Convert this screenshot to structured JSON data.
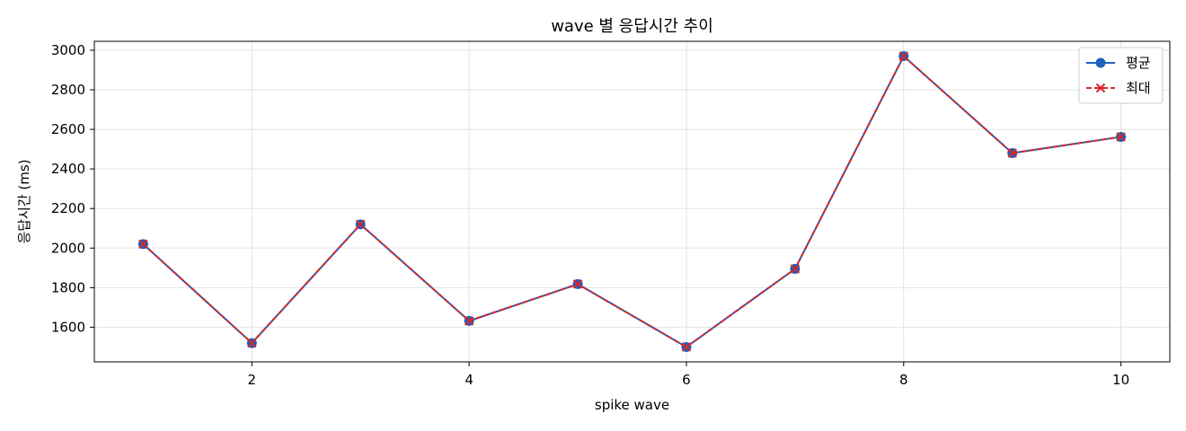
{
  "chart_data": {
    "type": "line",
    "title": "wave 별 응답시간 추이",
    "xlabel": "spike wave",
    "ylabel": "응답시간 (ms)",
    "x": [
      1,
      2,
      3,
      4,
      5,
      6,
      7,
      8,
      9,
      10
    ],
    "xlim": [
      0.55,
      10.45
    ],
    "ylim": [
      1425,
      3045
    ],
    "xticks": [
      2,
      4,
      6,
      8,
      10
    ],
    "yticks": [
      1600,
      1800,
      2000,
      2200,
      2400,
      2600,
      2800,
      3000
    ],
    "grid": true,
    "legend_position": "top-right",
    "series": [
      {
        "name": "평균",
        "values": [
          2020,
          1520,
          2120,
          1632,
          1818,
          1500,
          1895,
          2970,
          2480,
          2562
        ],
        "color": "#1f5fbf",
        "line_style": "solid",
        "marker": "circle"
      },
      {
        "name": "최대",
        "values": [
          2020,
          1520,
          2120,
          1632,
          1818,
          1500,
          1895,
          2970,
          2480,
          2562
        ],
        "color": "#d62728",
        "line_style": "dashed",
        "marker": "x"
      }
    ]
  }
}
